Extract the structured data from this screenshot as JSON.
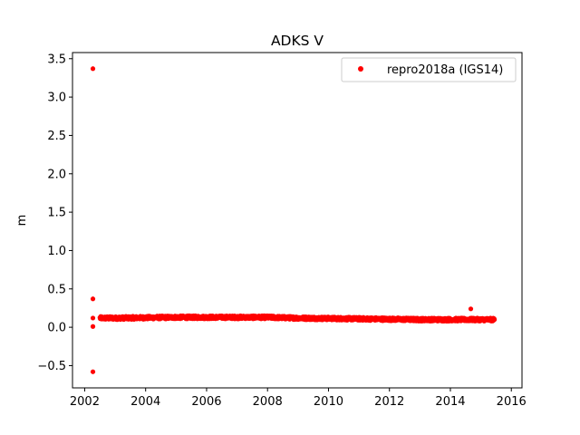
{
  "chart_data": {
    "type": "scatter",
    "title": "ADKS V",
    "xlabel": "",
    "ylabel": "m",
    "xlim": [
      2001.6,
      2016.35
    ],
    "ylim": [
      -0.79,
      3.58
    ],
    "x_ticks": [
      2002,
      2004,
      2006,
      2008,
      2010,
      2012,
      2014,
      2016
    ],
    "x_tick_labels": [
      "2002",
      "2004",
      "2006",
      "2008",
      "2010",
      "2012",
      "2014",
      "2016"
    ],
    "y_ticks": [
      -0.5,
      0.0,
      0.5,
      1.0,
      1.5,
      2.0,
      2.5,
      3.0,
      3.5
    ],
    "y_tick_labels": [
      "−0.5",
      "0.0",
      "0.5",
      "1.0",
      "1.5",
      "2.0",
      "2.5",
      "3.0",
      "3.5"
    ],
    "grid": false,
    "legend_position": "top-right",
    "series": [
      {
        "name": "repro2018a (IGS14)",
        "color": "#ff0000",
        "marker": "circle",
        "outliers": [
          {
            "x": 2002.27,
            "y": 3.37
          },
          {
            "x": 2002.27,
            "y": 0.37
          },
          {
            "x": 2002.27,
            "y": 0.12
          },
          {
            "x": 2002.27,
            "y": 0.01
          },
          {
            "x": 2002.27,
            "y": -0.58
          },
          {
            "x": 2014.67,
            "y": 0.24
          }
        ],
        "trend_points": [
          {
            "x": 2002.5,
            "y": 0.12
          },
          {
            "x": 2003.0,
            "y": 0.12
          },
          {
            "x": 2004.0,
            "y": 0.125
          },
          {
            "x": 2005.0,
            "y": 0.13
          },
          {
            "x": 2006.0,
            "y": 0.13
          },
          {
            "x": 2007.0,
            "y": 0.13
          },
          {
            "x": 2008.0,
            "y": 0.13
          },
          {
            "x": 2009.0,
            "y": 0.12
          },
          {
            "x": 2010.0,
            "y": 0.115
          },
          {
            "x": 2011.0,
            "y": 0.11
          },
          {
            "x": 2012.0,
            "y": 0.105
          },
          {
            "x": 2013.0,
            "y": 0.1
          },
          {
            "x": 2014.0,
            "y": 0.1
          },
          {
            "x": 2015.0,
            "y": 0.1
          },
          {
            "x": 2015.45,
            "y": 0.1
          }
        ]
      }
    ]
  }
}
